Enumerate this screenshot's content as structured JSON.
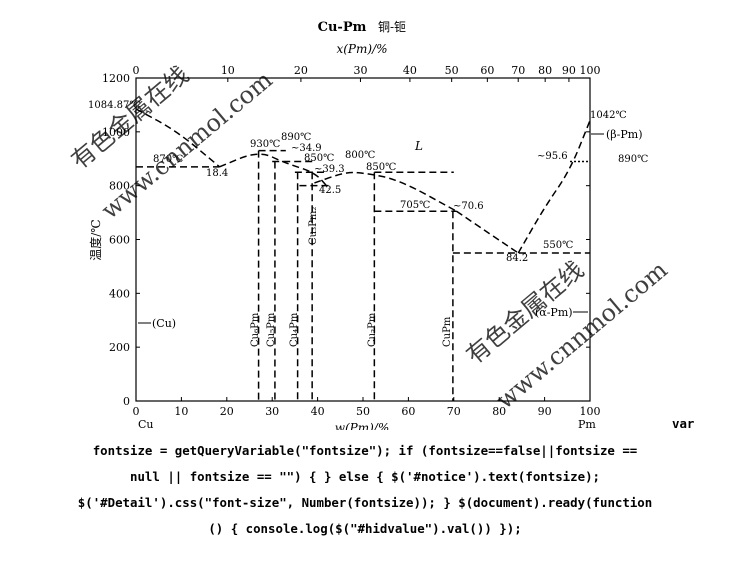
{
  "chart_data": {
    "type": "phase-diagram",
    "title": "Cu-Pm",
    "title_cn": "铜-钷",
    "xlabel_top": "x(Pm)/%",
    "xlabel_bottom": "w(Pm)/%",
    "ylabel": "温度/℃",
    "xlim": [
      0,
      100
    ],
    "ylim": [
      0,
      1200
    ],
    "top_ticks": [
      "0",
      "10",
      "20",
      "30",
      "40",
      "50",
      "60",
      "70",
      "80",
      "90",
      "100"
    ],
    "bottom_ticks": [
      "0",
      "10",
      "20",
      "30",
      "40",
      "50",
      "60",
      "70",
      "80",
      "90",
      "100"
    ],
    "y_ticks": [
      "0",
      "200",
      "400",
      "600",
      "800",
      "1000",
      "1200"
    ],
    "endpoint_left": "Cu",
    "endpoint_right": "Pm",
    "phases": {
      "liquid": "L",
      "cu_solid": "(Cu)",
      "alpha_pm": "(α-Pm)",
      "beta_pm": "(β-Pm)",
      "cu6pm": "Cu₆Pm",
      "cu5pm": "Cu₅Pm",
      "cu4pm": "Cu₄Pm",
      "cu2pm": "Cu₂Pm",
      "cupm": "CuPm",
      "cu3pm2": "Cu₃Pm₂"
    },
    "annotations": {
      "cu_melting": "1084.87℃",
      "eutectic_1": "870℃",
      "eutectic_1_comp": "18.4",
      "peak_1": "930℃",
      "peak_2": "890℃",
      "comp_349": "~34.9",
      "temp_850a": "850℃",
      "comp_393": "~39.3",
      "comp_425": "42.5",
      "peak_3": "800℃",
      "temp_850b": "850℃",
      "temp_705": "705℃",
      "comp_706": "~70.6",
      "temp_550": "550℃",
      "comp_842": "84.2",
      "comp_956": "~95.6",
      "pm_melting": "1042℃",
      "pm_transition": "890℃"
    },
    "series": [
      {
        "points": [
          [
            0,
            1084.87
          ],
          [
            9,
            1003
          ],
          [
            18.4,
            870
          ]
        ]
      },
      {
        "points": [
          [
            18.4,
            870
          ],
          [
            27,
            930
          ],
          [
            33,
            883
          ],
          [
            39.3,
            850
          ],
          [
            42.5,
            790
          ]
        ]
      },
      {
        "points": [
          [
            39.3,
            810
          ],
          [
            46,
            850
          ],
          [
            50,
            848
          ],
          [
            58,
            822
          ],
          [
            70.6,
            705
          ]
        ]
      },
      {
        "points": [
          [
            70.6,
            705
          ],
          [
            78,
            620
          ],
          [
            84.2,
            550
          ]
        ]
      },
      {
        "points": [
          [
            84.2,
            550
          ],
          [
            90,
            720
          ],
          [
            95.6,
            857
          ],
          [
            100,
            1042
          ]
        ]
      }
    ],
    "horizontals": [
      {
        "label": "870",
        "x": [
          0,
          18.4
        ],
        "y": 870
      },
      {
        "label": "930",
        "x": [
          27,
          33
        ],
        "y": 930
      },
      {
        "label": "890",
        "x": [
          30,
          39
        ],
        "y": 890
      },
      {
        "label": "850",
        "x": [
          35,
          42
        ],
        "y": 850
      },
      {
        "label": "800",
        "x": [
          36,
          42.5
        ],
        "y": 800
      },
      {
        "label": "850b",
        "x": [
          52.5,
          70
        ],
        "y": 850
      },
      {
        "label": "705",
        "x": [
          52.5,
          70.6
        ],
        "y": 705
      },
      {
        "label": "550",
        "x": [
          69.8,
          100
        ],
        "y": 550
      },
      {
        "label": "890b",
        "x": [
          95.6,
          100
        ],
        "y": 890
      }
    ],
    "compounds": [
      {
        "label": "Cu6Pm",
        "x": 27,
        "top": 930
      },
      {
        "label": "Cu5Pm",
        "x": 30.6,
        "top": 890
      },
      {
        "label": "Cu4Pm",
        "x": 35.6,
        "top": 850
      },
      {
        "label": "Cu3Pm2",
        "x": 38.8,
        "top": 850
      },
      {
        "label": "Cu2Pm",
        "x": 52.5,
        "top": 850
      },
      {
        "label": "CuPm",
        "x": 69.8,
        "top": 705
      }
    ]
  },
  "watermarks": [
    "有色金属在线",
    "www.cnnmol.com",
    "有色金属在线",
    "www.cnnmol.com"
  ],
  "code": {
    "first": "var",
    "lines": [
      "fontsize = getQueryVariable(\"fontsize\"); if (fontsize==false||fontsize ==",
      "null || fontsize == \"\") { } else { $('#notice').text(fontsize);",
      "$('#Detail').css(\"font-size\", Number(fontsize)); } $(document).ready(function",
      "() { console.log($(\"#hidvalue\").val()) });"
    ]
  }
}
